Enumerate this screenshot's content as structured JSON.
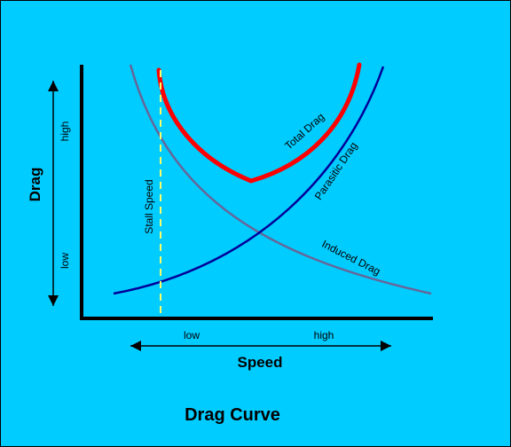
{
  "title": "Drag Curve",
  "colors": {
    "background": "#00ccff",
    "axis": "#000000",
    "total_drag": "#ff0000",
    "parasitic_drag": "#000099",
    "induced_drag": "#666699",
    "stall_line": "#ffff66",
    "axis_title": "#ff0000"
  },
  "y_axis": {
    "title": "Drag",
    "high_label": "high",
    "low_label": "low"
  },
  "x_axis": {
    "title": "Speed",
    "low_label": "low",
    "high_label": "high"
  },
  "curves": {
    "total_drag": "Total Drag",
    "parasitic_drag": "Parasitic Drag",
    "induced_drag": "Induced Drag"
  },
  "stall_speed_label": "Stall Speed"
}
